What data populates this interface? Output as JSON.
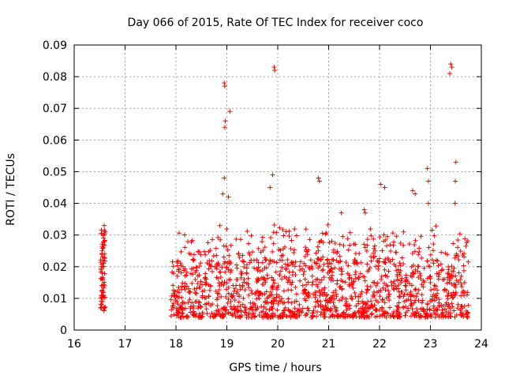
{
  "chart_data": {
    "type": "scatter",
    "title": "Day 066 of 2015, Rate Of TEC Index for receiver coco",
    "xlabel": "GPS time / hours",
    "ylabel": "ROTI / TECUs",
    "xlim": [
      16,
      24
    ],
    "ylim": [
      0,
      0.09
    ],
    "xticks": [
      "16",
      "17",
      "18",
      "19",
      "20",
      "21",
      "22",
      "23",
      "24"
    ],
    "yticks": [
      "0",
      "0.01",
      "0.02",
      "0.03",
      "0.04",
      "0.05",
      "0.06",
      "0.07",
      "0.08",
      "0.09"
    ],
    "grid": true,
    "marker": "+",
    "color": "#ff0000",
    "series": [
      {
        "name": "ROTI",
        "points": [
          [
            16.52,
            0.007
          ],
          [
            16.53,
            0.01
          ],
          [
            16.54,
            0.014
          ],
          [
            16.55,
            0.018
          ],
          [
            16.56,
            0.022
          ],
          [
            16.57,
            0.026
          ],
          [
            16.58,
            0.03
          ],
          [
            16.59,
            0.033
          ],
          [
            16.55,
            0.012
          ],
          [
            16.56,
            0.016
          ],
          [
            16.58,
            0.02
          ],
          [
            16.6,
            0.024
          ],
          [
            16.54,
            0.008
          ],
          [
            16.57,
            0.011
          ],
          [
            16.59,
            0.027
          ],
          [
            16.61,
            0.031
          ],
          [
            16.53,
            0.019
          ],
          [
            16.56,
            0.009
          ],
          [
            16.6,
            0.014
          ],
          [
            16.55,
            0.025
          ],
          [
            18.95,
            0.078
          ],
          [
            18.96,
            0.077
          ],
          [
            18.97,
            0.066
          ],
          [
            18.96,
            0.064
          ],
          [
            19.06,
            0.069
          ],
          [
            19.93,
            0.083
          ],
          [
            19.94,
            0.082
          ],
          [
            23.4,
            0.084
          ],
          [
            23.42,
            0.083
          ],
          [
            23.38,
            0.081
          ],
          [
            18.95,
            0.048
          ],
          [
            19.9,
            0.049
          ],
          [
            19.85,
            0.045
          ],
          [
            20.8,
            0.048
          ],
          [
            20.82,
            0.047
          ],
          [
            22.94,
            0.051
          ],
          [
            22.96,
            0.047
          ],
          [
            23.5,
            0.053
          ],
          [
            23.49,
            0.047
          ],
          [
            22.02,
            0.046
          ],
          [
            22.1,
            0.045
          ],
          [
            19.03,
            0.042
          ],
          [
            18.92,
            0.043
          ],
          [
            21.7,
            0.038
          ],
          [
            21.72,
            0.037
          ],
          [
            22.65,
            0.044
          ],
          [
            22.7,
            0.043
          ],
          [
            23.48,
            0.04
          ],
          [
            21.25,
            0.037
          ],
          [
            22.96,
            0.04
          ]
        ]
      }
    ],
    "generated_band": {
      "x_start": 17.9,
      "x_end": 23.75,
      "baseline": 0.004,
      "typical_max": 0.035,
      "count": 1500,
      "note": "dense cloud of ROTI points between roughly 0.004 and 0.035 TECU over 17.9-23.75 h"
    }
  }
}
